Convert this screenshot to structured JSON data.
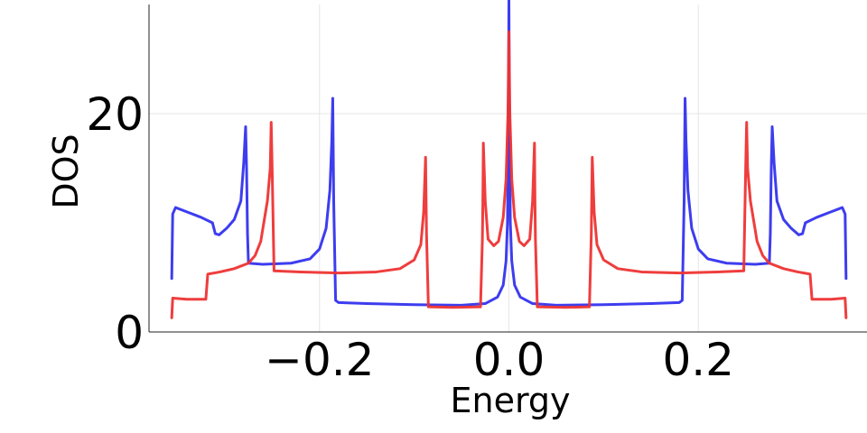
{
  "chart_data": {
    "type": "line",
    "title": "",
    "xlabel": "Energy",
    "ylabel": "DOS",
    "xlim": [
      -0.38,
      0.38
    ],
    "ylim": [
      0,
      30
    ],
    "xticks": [
      {
        "value": -0.2,
        "label": "−0.2"
      },
      {
        "value": 0.0,
        "label": "0.0"
      },
      {
        "value": 0.2,
        "label": "0.2"
      }
    ],
    "yticks": [
      {
        "value": 0,
        "label": "0"
      },
      {
        "value": 20,
        "label": "20"
      }
    ],
    "grid": true,
    "legend": "none",
    "series": [
      {
        "color": "#3333ee",
        "points": [
          [
            -0.356,
            4.9
          ],
          [
            -0.355,
            10.8
          ],
          [
            -0.352,
            11.4
          ],
          [
            -0.34,
            11.0
          ],
          [
            -0.325,
            10.5
          ],
          [
            -0.313,
            10.0
          ],
          [
            -0.31,
            9.0
          ],
          [
            -0.306,
            8.9
          ],
          [
            -0.298,
            9.5
          ],
          [
            -0.29,
            10.3
          ],
          [
            -0.283,
            12.0
          ],
          [
            -0.28,
            15.5
          ],
          [
            -0.278,
            18.8
          ],
          [
            -0.277,
            15.0
          ],
          [
            -0.276,
            9.0
          ],
          [
            -0.275,
            6.3
          ],
          [
            -0.26,
            6.2
          ],
          [
            -0.23,
            6.3
          ],
          [
            -0.21,
            6.7
          ],
          [
            -0.2,
            7.6
          ],
          [
            -0.193,
            9.5
          ],
          [
            -0.189,
            13.0
          ],
          [
            -0.187,
            17.5
          ],
          [
            -0.186,
            21.4
          ],
          [
            -0.185,
            12.0
          ],
          [
            -0.183,
            2.9
          ],
          [
            -0.18,
            2.7
          ],
          [
            -0.15,
            2.6
          ],
          [
            -0.1,
            2.5
          ],
          [
            -0.05,
            2.45
          ],
          [
            -0.025,
            2.6
          ],
          [
            -0.012,
            3.2
          ],
          [
            -0.006,
            4.3
          ],
          [
            -0.003,
            6.5
          ],
          [
            -0.0015,
            10.0
          ],
          [
            -0.0005,
            20.0
          ],
          [
            0.0,
            30.5
          ],
          [
            0.0005,
            20.0
          ],
          [
            0.0015,
            10.0
          ],
          [
            0.003,
            6.5
          ],
          [
            0.006,
            4.3
          ],
          [
            0.012,
            3.2
          ],
          [
            0.025,
            2.6
          ],
          [
            0.05,
            2.45
          ],
          [
            0.1,
            2.5
          ],
          [
            0.15,
            2.6
          ],
          [
            0.18,
            2.7
          ],
          [
            0.183,
            2.9
          ],
          [
            0.185,
            12.0
          ],
          [
            0.186,
            21.4
          ],
          [
            0.187,
            17.5
          ],
          [
            0.189,
            13.0
          ],
          [
            0.193,
            9.5
          ],
          [
            0.2,
            7.6
          ],
          [
            0.21,
            6.7
          ],
          [
            0.23,
            6.3
          ],
          [
            0.26,
            6.2
          ],
          [
            0.275,
            6.3
          ],
          [
            0.276,
            9.0
          ],
          [
            0.277,
            15.0
          ],
          [
            0.278,
            18.8
          ],
          [
            0.28,
            15.5
          ],
          [
            0.283,
            12.0
          ],
          [
            0.29,
            10.3
          ],
          [
            0.298,
            9.5
          ],
          [
            0.306,
            8.9
          ],
          [
            0.31,
            9.0
          ],
          [
            0.313,
            10.0
          ],
          [
            0.325,
            10.5
          ],
          [
            0.34,
            11.0
          ],
          [
            0.352,
            11.4
          ],
          [
            0.355,
            10.8
          ],
          [
            0.356,
            4.9
          ]
        ]
      },
      {
        "color": "#ee3333",
        "points": [
          [
            -0.356,
            1.3
          ],
          [
            -0.355,
            3.1
          ],
          [
            -0.34,
            3.0
          ],
          [
            -0.32,
            3.0
          ],
          [
            -0.318,
            5.3
          ],
          [
            -0.305,
            5.5
          ],
          [
            -0.29,
            5.8
          ],
          [
            -0.275,
            6.3
          ],
          [
            -0.268,
            7.0
          ],
          [
            -0.262,
            8.3
          ],
          [
            -0.259,
            9.9
          ],
          [
            -0.255,
            12.0
          ],
          [
            -0.252,
            15.0
          ],
          [
            -0.251,
            19.2
          ],
          [
            -0.25,
            15.0
          ],
          [
            -0.248,
            5.6
          ],
          [
            -0.22,
            5.5
          ],
          [
            -0.18,
            5.4
          ],
          [
            -0.14,
            5.5
          ],
          [
            -0.115,
            5.8
          ],
          [
            -0.1,
            6.6
          ],
          [
            -0.093,
            8.0
          ],
          [
            -0.09,
            11.0
          ],
          [
            -0.088,
            16.0
          ],
          [
            -0.087,
            9.0
          ],
          [
            -0.085,
            2.3
          ],
          [
            -0.06,
            2.25
          ],
          [
            -0.03,
            2.3
          ],
          [
            -0.028,
            8.5
          ],
          [
            -0.0275,
            12.0
          ],
          [
            -0.027,
            17.3
          ],
          [
            -0.025,
            12.0
          ],
          [
            -0.022,
            8.5
          ],
          [
            -0.016,
            7.9
          ],
          [
            -0.011,
            8.3
          ],
          [
            -0.006,
            10.5
          ],
          [
            -0.003,
            14.0
          ],
          [
            -0.001,
            20.0
          ],
          [
            0.0,
            27.5
          ],
          [
            0.001,
            20.0
          ],
          [
            0.003,
            14.0
          ],
          [
            0.006,
            10.5
          ],
          [
            0.011,
            8.3
          ],
          [
            0.016,
            7.9
          ],
          [
            0.022,
            8.5
          ],
          [
            0.025,
            12.0
          ],
          [
            0.027,
            17.3
          ],
          [
            0.0275,
            12.0
          ],
          [
            0.028,
            8.5
          ],
          [
            0.03,
            2.3
          ],
          [
            0.06,
            2.25
          ],
          [
            0.085,
            2.3
          ],
          [
            0.087,
            9.0
          ],
          [
            0.088,
            16.0
          ],
          [
            0.09,
            11.0
          ],
          [
            0.093,
            8.0
          ],
          [
            0.1,
            6.6
          ],
          [
            0.115,
            5.8
          ],
          [
            0.14,
            5.5
          ],
          [
            0.18,
            5.4
          ],
          [
            0.22,
            5.5
          ],
          [
            0.248,
            5.6
          ],
          [
            0.25,
            15.0
          ],
          [
            0.251,
            19.2
          ],
          [
            0.252,
            15.0
          ],
          [
            0.255,
            12.0
          ],
          [
            0.259,
            9.9
          ],
          [
            0.262,
            8.3
          ],
          [
            0.268,
            7.0
          ],
          [
            0.275,
            6.3
          ],
          [
            0.29,
            5.8
          ],
          [
            0.305,
            5.5
          ],
          [
            0.318,
            5.3
          ],
          [
            0.32,
            3.0
          ],
          [
            0.34,
            3.0
          ],
          [
            0.355,
            3.1
          ],
          [
            0.356,
            1.3
          ]
        ]
      }
    ]
  }
}
